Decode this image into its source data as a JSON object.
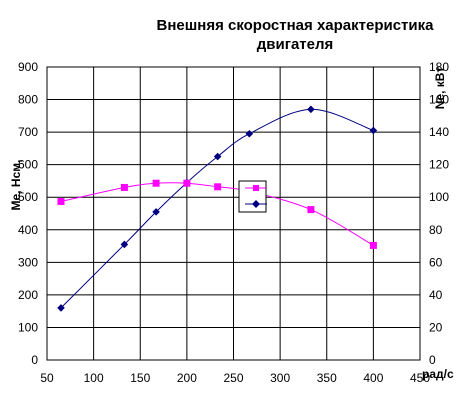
{
  "chart_data": {
    "type": "line",
    "title_line1": "Внешняя скоростная характеристика",
    "title_line2": "двигателя",
    "xlabel": "рад/с",
    "ylabel_left": "Ме, Нсм,",
    "ylabel_right": "Ne, кВт",
    "xlim": [
      50,
      450
    ],
    "ylim_left": [
      0,
      900
    ],
    "ylim_right": [
      0,
      180
    ],
    "x_ticks": [
      50,
      100,
      150,
      200,
      250,
      300,
      350,
      400,
      450
    ],
    "y_left_ticks": [
      0,
      100,
      200,
      300,
      400,
      500,
      600,
      700,
      800,
      900
    ],
    "y_right_ticks": [
      0,
      20,
      40,
      60,
      80,
      100,
      120,
      140,
      160,
      180
    ],
    "grid": true,
    "series": [
      {
        "axis": "right",
        "marker": "diamond",
        "color": "#000080",
        "x": [
          65,
          133,
          167,
          200,
          233,
          267,
          333,
          400
        ],
        "y": [
          32,
          71,
          91,
          109,
          125,
          139,
          154,
          141
        ]
      },
      {
        "axis": "left",
        "marker": "square",
        "color": "#ff00ff",
        "x": [
          65,
          133,
          167,
          200,
          233,
          267,
          333,
          400
        ],
        "y": [
          487,
          530,
          543,
          543,
          532,
          518,
          462,
          352
        ]
      }
    ]
  }
}
